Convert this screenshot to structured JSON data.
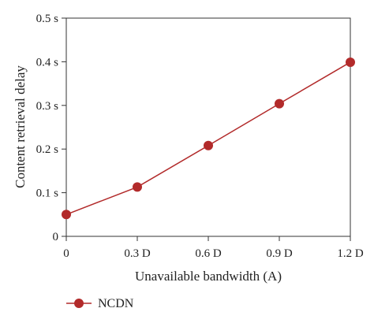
{
  "chart_data": {
    "type": "line",
    "xlabel": "Unavailable bandwidth (A)",
    "ylabel": "Content retrieval delay",
    "x_ticks": [
      "0",
      "0.3 D",
      "0.6 D",
      "0.9 D",
      "1.2 D"
    ],
    "y_ticks": [
      "0",
      "0.1 s",
      "0.2 s",
      "0.3 s",
      "0.4 s",
      "0.5 s"
    ],
    "xlim": [
      0,
      1.2
    ],
    "ylim": [
      0,
      0.5
    ],
    "grid": false,
    "legend_position": "bottom-left",
    "series": [
      {
        "name": "NCDN",
        "x": [
          0,
          0.3,
          0.6,
          0.9,
          1.2
        ],
        "y": [
          0.05,
          0.113,
          0.208,
          0.304,
          0.399
        ],
        "color": "#b22a2a"
      }
    ]
  }
}
